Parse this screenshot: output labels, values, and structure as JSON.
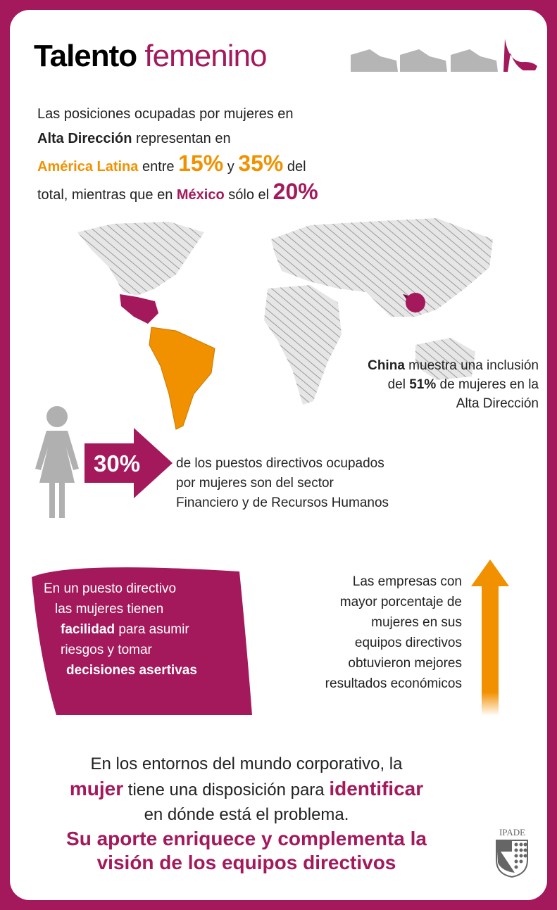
{
  "title": {
    "part1": "Talento",
    "part2": "femenino"
  },
  "intro": {
    "l1": "Las posiciones ocupadas por mujeres en",
    "alta": "Alta Dirección",
    "l2": " representan en",
    "america": "América Latina",
    "entre": " entre ",
    "p15": "15%",
    "y": " y ",
    "p35": "35%",
    "del": " del",
    "l4a": "total, mientras que en ",
    "mexico": "México",
    "solo": " sólo el ",
    "p20": "20%"
  },
  "china": {
    "name": "China",
    "t1": " muestra una inclusión",
    "t2a": "del ",
    "pct": "51%",
    "t2b": " de mujeres en la",
    "t3": "Alta Dirección"
  },
  "stat": {
    "pct": "30%",
    "l1": "de los puestos directivos ocupados",
    "l2": "por mujeres son del sector",
    "l3": "Financiero y de Recursos Humanos"
  },
  "box": {
    "l1": "En un puesto directivo",
    "l2": "las mujeres tienen",
    "l3b": "facilidad",
    "l3": " para asumir",
    "l4": "riesgos y tomar",
    "l5": "decisiones asertivas"
  },
  "right": {
    "l1": "Las empresas con",
    "l2": "mayor porcentaje de",
    "l3": "mujeres en sus",
    "l4": "equipos directivos",
    "l5": "obtuvieron mejores",
    "l6": "resultados económicos"
  },
  "bottom": {
    "l1": "En los entornos del mundo corporativo, la",
    "mujer": "mujer",
    "l2": " tiene una disposición para ",
    "ident": "identificar",
    "l3": "en dónde está el problema.",
    "l4": "Su aporte enriquece y complementa la",
    "l5": "visión de los equipos directivos"
  },
  "logo": {
    "text": "IPADE"
  },
  "colors": {
    "magenta": "#a3195b",
    "orange": "#f29100",
    "gray": "#c8c8c8"
  }
}
